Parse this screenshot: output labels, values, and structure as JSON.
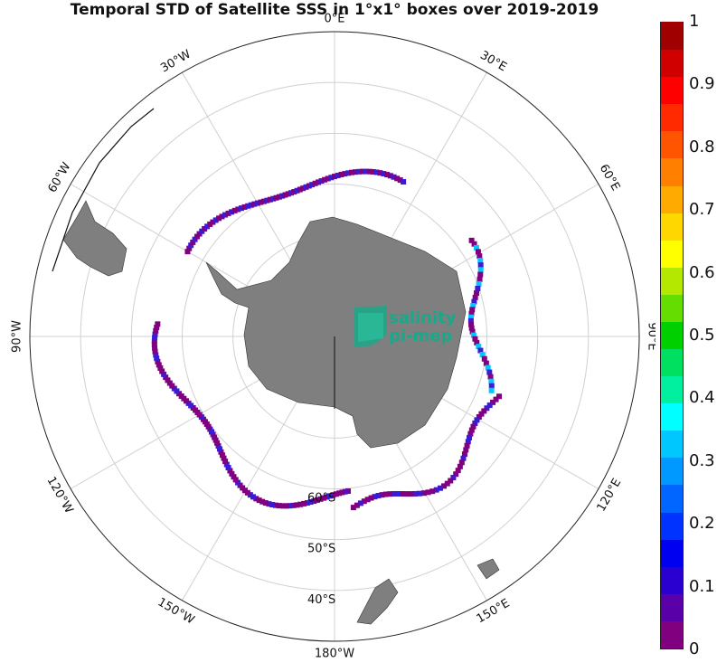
{
  "title": "Temporal STD of Satellite SSS in 1°x1° boxes over 2019-2019",
  "logo": {
    "line1": "salinity",
    "line2": "pi-mep"
  },
  "longitude_labels": [
    {
      "deg": 0,
      "text": "0°E"
    },
    {
      "deg": 30,
      "text": "30°E"
    },
    {
      "deg": 60,
      "text": "60°E"
    },
    {
      "deg": 90,
      "text": "90°E"
    },
    {
      "deg": 120,
      "text": "120°E"
    },
    {
      "deg": 150,
      "text": "150°E"
    },
    {
      "deg": 180,
      "text": "180°W"
    },
    {
      "deg": -150,
      "text": "150°W"
    },
    {
      "deg": -120,
      "text": "120°W"
    },
    {
      "deg": -90,
      "text": "90°W"
    },
    {
      "deg": -60,
      "text": "60°W"
    },
    {
      "deg": -30,
      "text": "30°W"
    }
  ],
  "latitude_labels": [
    {
      "lat": -60,
      "text": "60°S"
    },
    {
      "lat": -50,
      "text": "50°S"
    },
    {
      "lat": -40,
      "text": "40°S"
    }
  ],
  "colorbar": {
    "min": 0,
    "max": 1,
    "ticks": [
      "0",
      "0.1",
      "0.2",
      "0.3",
      "0.4",
      "0.5",
      "0.6",
      "0.7",
      "0.8",
      "0.9",
      "1"
    ],
    "colors": [
      "#800080",
      "#5a00a8",
      "#2a00d0",
      "#0000f0",
      "#0033ff",
      "#0066ff",
      "#0099ff",
      "#00c8ff",
      "#00ffff",
      "#00f0a0",
      "#00e060",
      "#00d000",
      "#66dd00",
      "#b4e800",
      "#ffff00",
      "#ffd700",
      "#ffaa00",
      "#ff8000",
      "#ff5500",
      "#ff2a00",
      "#ff0000",
      "#d00000",
      "#a00000"
    ]
  },
  "colors": {
    "land": "#7f7f7f",
    "grid": "#d0d0d0",
    "frame": "#222222",
    "std_low": "#800080",
    "std_mid": "#3a1bd6",
    "std_high": "#00c8ff"
  }
}
